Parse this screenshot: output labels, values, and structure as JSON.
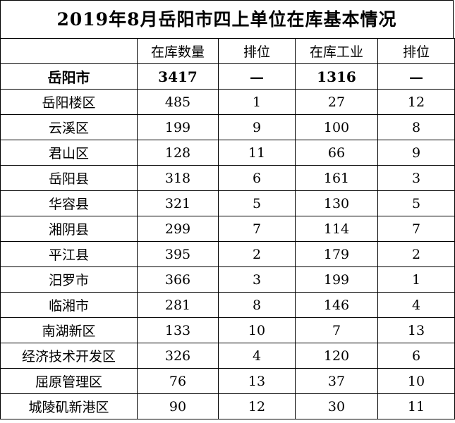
{
  "title": "2019年8月岳阳市四上单位在库基本情况",
  "columns": [
    "",
    "在库数量",
    "排位",
    "在库工业",
    "排位"
  ],
  "total": {
    "region": "岳阳市",
    "count": "3417",
    "rank": "—",
    "industry": "1316",
    "industry_rank": "—"
  },
  "rows": [
    {
      "region": "岳阳楼区",
      "count": "485",
      "rank": "1",
      "industry": "27",
      "industry_rank": "12"
    },
    {
      "region": "云溪区",
      "count": "199",
      "rank": "9",
      "industry": "100",
      "industry_rank": "8"
    },
    {
      "region": "君山区",
      "count": "128",
      "rank": "11",
      "industry": "66",
      "industry_rank": "9"
    },
    {
      "region": "岳阳县",
      "count": "318",
      "rank": "6",
      "industry": "161",
      "industry_rank": "3"
    },
    {
      "region": "华容县",
      "count": "321",
      "rank": "5",
      "industry": "130",
      "industry_rank": "5"
    },
    {
      "region": "湘阴县",
      "count": "299",
      "rank": "7",
      "industry": "114",
      "industry_rank": "7"
    },
    {
      "region": "平江县",
      "count": "395",
      "rank": "2",
      "industry": "179",
      "industry_rank": "2"
    },
    {
      "region": "汨罗市",
      "count": "366",
      "rank": "3",
      "industry": "199",
      "industry_rank": "1"
    },
    {
      "region": "临湘市",
      "count": "281",
      "rank": "8",
      "industry": "146",
      "industry_rank": "4"
    },
    {
      "region": "南湖新区",
      "count": "133",
      "rank": "10",
      "industry": "7",
      "industry_rank": "13"
    },
    {
      "region": "经济技术开发区",
      "count": "326",
      "rank": "4",
      "industry": "120",
      "industry_rank": "6"
    },
    {
      "region": "屈原管理区",
      "count": "76",
      "rank": "13",
      "industry": "37",
      "industry_rank": "10"
    },
    {
      "region": "城陵矶新港区",
      "count": "90",
      "rank": "12",
      "industry": "30",
      "industry_rank": "11"
    }
  ]
}
